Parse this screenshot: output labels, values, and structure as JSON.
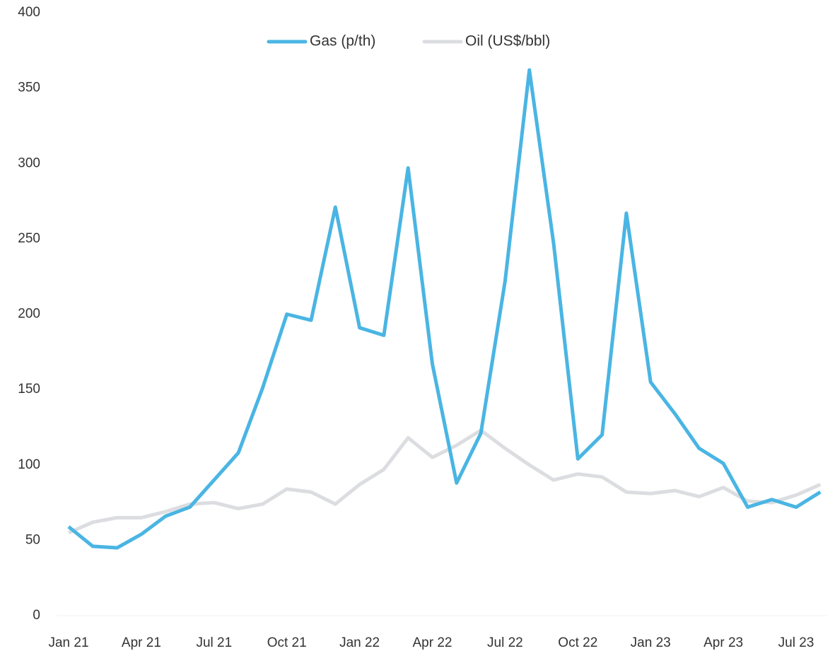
{
  "chart_data": {
    "type": "line",
    "categories": [
      "Jan 21",
      null,
      null,
      "Apr 21",
      null,
      null,
      "Jul 21",
      null,
      null,
      "Oct 21",
      null,
      null,
      "Jan 22",
      null,
      null,
      "Apr 22",
      null,
      null,
      "Jul 22",
      null,
      null,
      "Oct 22",
      null,
      null,
      "Jan 23",
      null,
      null,
      "Apr 23",
      null,
      null,
      "Jul 23",
      null
    ],
    "series": [
      {
        "name": "Gas (p/th)",
        "color": "#4ab5e3",
        "values": [
          59,
          46,
          45,
          54,
          66,
          72,
          90,
          108,
          151,
          200,
          196,
          271,
          191,
          186,
          297,
          167,
          88,
          121,
          222,
          362,
          247,
          104,
          120,
          267,
          155,
          134,
          111,
          101,
          72,
          77,
          72,
          82
        ]
      },
      {
        "name": "Oil (US$/bbl)",
        "color": "#dcdde1",
        "values": [
          55,
          62,
          65,
          65,
          69,
          74,
          75,
          71,
          74,
          84,
          82,
          74,
          87,
          97,
          118,
          105,
          113,
          123,
          111,
          100,
          90,
          94,
          92,
          82,
          81,
          83,
          79,
          85,
          76,
          75,
          80,
          87
        ]
      }
    ],
    "ylim": [
      0,
      400
    ],
    "yticks": [
      0,
      50,
      100,
      150,
      200,
      250,
      300,
      350,
      400
    ],
    "grid": false,
    "legend": "top"
  }
}
